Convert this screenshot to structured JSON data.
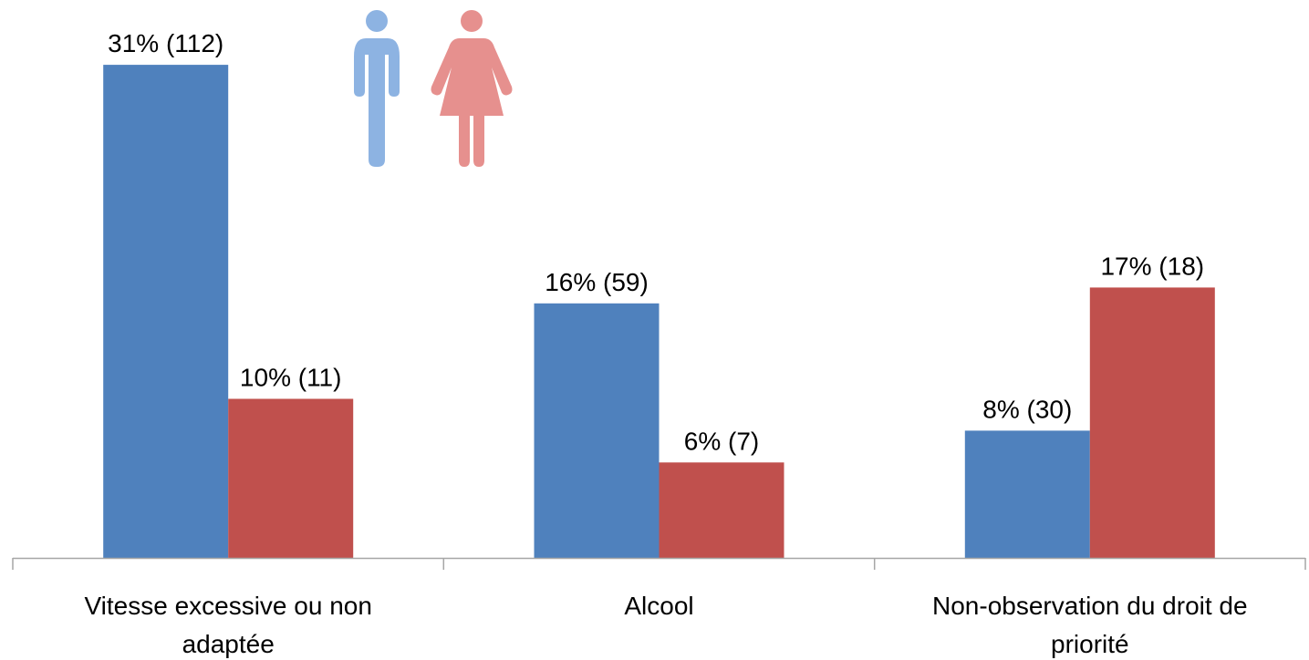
{
  "chart_data": {
    "type": "bar",
    "categories": [
      "Vitesse excessive ou non adaptée",
      "Alcool",
      "Non-observation du droit de priorité"
    ],
    "category_lines": [
      [
        "Vitesse excessive ou non",
        "adaptée"
      ],
      [
        "Alcool"
      ],
      [
        "Non-observation du droit de",
        "priorité"
      ]
    ],
    "series": [
      {
        "icon": "man-icon",
        "color": "#4f81bd",
        "values": [
          31,
          16,
          8
        ],
        "labels": [
          "31% (112)",
          "16% (59)",
          "8% (30)"
        ]
      },
      {
        "icon": "woman-icon",
        "color": "#c0504d",
        "values": [
          10,
          6,
          17
        ],
        "labels": [
          "10% (11)",
          "6% (7)",
          "17% (18)"
        ]
      }
    ],
    "ylim": [
      0,
      34
    ],
    "grid": false,
    "legend": "icons-top-left",
    "legend_icon_colors": {
      "man": "#8db3e2",
      "woman": "#e6908e"
    }
  }
}
